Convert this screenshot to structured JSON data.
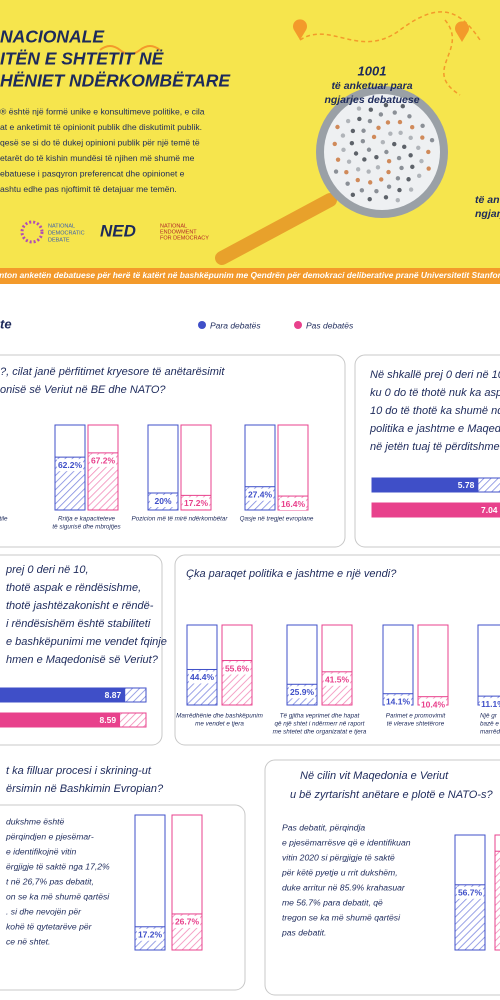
{
  "header": {
    "title": [
      "NACIONALE",
      "ITËN E SHTETIT NË",
      "HËNIET NDËRKOMBËTARE"
    ],
    "intro": [
      "® është një formë unike e konsultimeve politike, e cila",
      "at e anketimit të opinionit publik dhe diskutimit publik.",
      "qesë se si do të dukej opinioni publik për një temë të",
      "etarët do të kishin mundësi të njihen më shumë me",
      "ebatuese i pasqyron preferencat dhe opinionet e",
      "ashtu edhe pas njoftimit të detajuar me temën."
    ],
    "callout_left": [
      "1001",
      "të anketuar para",
      "ngjarjes debatuese"
    ],
    "callout_right": [
      "të an",
      "ngjarj"
    ],
    "logo_ndd": [
      "NATIONAL",
      "DEMOCRATIC",
      "DEBATE"
    ],
    "logo_ned": "NED",
    "logo_ned_full": [
      "NATIONAL",
      "ENDOWMENT",
      "FOR DEMOCRACY"
    ],
    "banner": "nton anketën debatuese për herë të katërt në bashkëpunim me Qendrën për demokraci deliberative pranë Universitetit Stanfor"
  },
  "legend": {
    "section": "te",
    "before": "Para debatës",
    "after": "Pas debatës"
  },
  "benefits": {
    "question": [
      "?, cilat janë përfitimet kryesore të anëtarësimit",
      "onisë së Veriut në BE dhe NATO?"
    ],
    "groups": [
      {
        "label": [
          "tile"
        ]
      },
      {
        "label": [
          "Rritja e kapaciteteve",
          "të sigurisë dhe mbrojtjes"
        ],
        "before": {
          "value": 62.2,
          "label": "62.2%"
        },
        "after": {
          "value": 67.2,
          "label": "67.2%"
        }
      },
      {
        "label": [
          "Pozicion më të mirë ndërkombëtar"
        ],
        "before": {
          "value": 20,
          "label": "20%"
        },
        "after": {
          "value": 17.2,
          "label": "17.2%"
        }
      },
      {
        "label": [
          "Qasje në tregjet evropiane"
        ],
        "before": {
          "value": 27.4,
          "label": "27.4%"
        },
        "after": {
          "value": 16.4,
          "label": "16.4%"
        }
      }
    ]
  },
  "influence": {
    "question": [
      "Në shkallë prej 0 deri në 10,",
      "ku 0 do të thotë nuk ka aspak",
      "10 do të thotë ka shumë ndikim",
      "politika e jashtme e Maqedonis",
      "në jetën tuaj të përditshme?"
    ],
    "before": 5.78,
    "after": 7.04
  },
  "stability": {
    "question": [
      "prej 0 deri në 10,",
      "thotë aspak e rëndësishme,",
      "thotë jashtëzakonisht e rëndë-",
      "i rëndësishëm është stabiliteti",
      "e bashkëpunimi me vendet fqinje",
      "hmen e Maqedonisë së Veriut?"
    ],
    "before": 8.87,
    "after": 8.59
  },
  "foreign_policy": {
    "question": [
      "Çka paraqet politika e jashtme e një vendi?"
    ],
    "groups": [
      {
        "label": [
          "Marrëdhënie dhe bashkëpunim",
          "me vendet e tjera"
        ],
        "before": {
          "value": 44.4,
          "label": "44.4%"
        },
        "after": {
          "value": 55.6,
          "label": "55.6%"
        }
      },
      {
        "label": [
          "Të gjitha veprimet dhe hapat",
          "që një shtet i ndërmerr në raport",
          "me shtetet dhe organizatat e tjera"
        ],
        "before": {
          "value": 25.9,
          "label": "25.9%"
        },
        "after": {
          "value": 41.5,
          "label": "41.5%"
        }
      },
      {
        "label": [
          "Parimet e promovimit",
          "të vlerave shtetërore"
        ],
        "before": {
          "value": 14.1,
          "label": "14.1%"
        },
        "after": {
          "value": 10.4,
          "label": "10.4%"
        }
      },
      {
        "label": [
          "Një gr",
          "bazë e t",
          "marrëdhë"
        ],
        "before": {
          "value": 11.1,
          "label": "11.1%"
        }
      }
    ]
  },
  "screening": {
    "question": [
      "t ka filluar procesi i skrining-ut",
      "ërsimin në Bashkimin Evropian?"
    ],
    "text": [
      "dukshme është",
      "përqindjen e pjesëmar-",
      "e identifikojnë vitin",
      "ërgjigje të saktë nga 17,2%",
      "t në 26,7% pas debatit,",
      "on se ka më shumë qartësi",
      ". si dhe nevojën për",
      "kohë të qytetarëve për",
      "ce në shtet."
    ],
    "groups": [
      {
        "before": {
          "value": 17.2,
          "label": "17.2%"
        },
        "after": {
          "value": 26.7,
          "label": "26.7%"
        }
      }
    ]
  },
  "nato": {
    "question": [
      "Në cilin vit Maqedonia e Veriut",
      "u bë zyrtarisht anëtare e plotë e NATO-s?"
    ],
    "text": [
      "Pas debatit, përqindja",
      "e pjesëmarrësve që e identifikuan",
      "vitin 2020 si përgjigje të saktë",
      "për këtë pyetje u rrit dukshëm,",
      "duke arritur në 85.9% krahasuar",
      "me 56.7% para debatit, që",
      "tregon se ka më shumë qartësi",
      "pas debatit."
    ],
    "groups": [
      {
        "before": {
          "value": 56.7,
          "label": "56.7%"
        },
        "after": {
          "value": 85.9
        }
      }
    ]
  }
}
